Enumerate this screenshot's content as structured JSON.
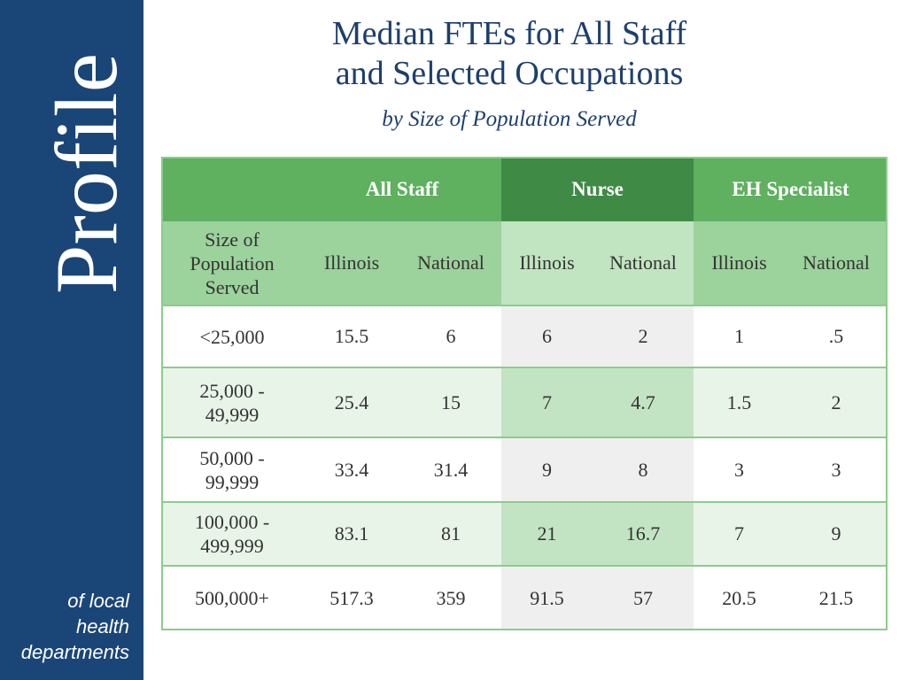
{
  "sidebar": {
    "brand": "Profile",
    "tagline": [
      "of local",
      "health",
      "departments"
    ]
  },
  "header": {
    "title_lines": [
      "Median FTEs for All Staff",
      "and Selected Occupations"
    ],
    "subtitle": "by Size of Population Served"
  },
  "table": {
    "groups": [
      "All Staff",
      "Nurse",
      "EH Specialist"
    ],
    "row_header_label": [
      "Size of",
      "Population",
      "Served"
    ],
    "subheaders": [
      "Illinois",
      "National",
      "Illinois",
      "National",
      "Illinois",
      "National"
    ],
    "rows": [
      {
        "label": [
          "<25,000"
        ],
        "values": [
          "15.5",
          "6",
          "6",
          "2",
          "1",
          ".5"
        ]
      },
      {
        "label": [
          "25,000 -",
          "49,999"
        ],
        "values": [
          "25.4",
          "15",
          "7",
          "4.7",
          "1.5",
          "2"
        ]
      },
      {
        "label": [
          "50,000 -",
          "99,999"
        ],
        "values": [
          "33.4",
          "31.4",
          "9",
          "8",
          "3",
          "3"
        ]
      },
      {
        "label": [
          "100,000 -",
          "499,999"
        ],
        "values": [
          "83.1",
          "81",
          "21",
          "16.7",
          "7",
          "9"
        ]
      },
      {
        "label": [
          "500,000+"
        ],
        "values": [
          "517.3",
          "359",
          "91.5",
          "57",
          "20.5",
          "21.5"
        ]
      }
    ]
  }
}
